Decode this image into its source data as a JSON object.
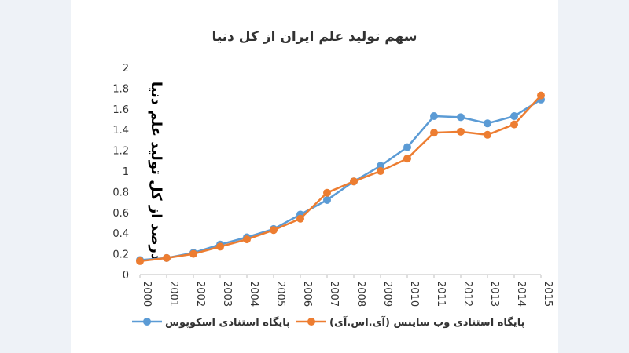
{
  "chart_data": {
    "type": "line",
    "title": "سهم تولید علم ایران از کل دنیا",
    "xlabel": "",
    "ylabel": "درصد از کل تولید علم دنیا",
    "x": [
      "2000",
      "2001",
      "2002",
      "2003",
      "2004",
      "2005",
      "2006",
      "2007",
      "2008",
      "2009",
      "2010",
      "2011",
      "2012",
      "2013",
      "2014",
      "2015"
    ],
    "ylim": [
      0,
      2
    ],
    "yticks": [
      "0",
      "0.2",
      "0.4",
      "0.6",
      "0.8",
      "1",
      "1.2",
      "1.4",
      "1.6",
      "1.8",
      "2"
    ],
    "grid": false,
    "legend_position": "bottom",
    "series": [
      {
        "name": "پایگاه استنادی اسکوپوس",
        "color": "#5b9bd5",
        "values": [
          0.14,
          0.16,
          0.21,
          0.29,
          0.36,
          0.44,
          0.58,
          0.72,
          0.9,
          1.05,
          1.23,
          1.53,
          1.52,
          1.46,
          1.53,
          1.69
        ]
      },
      {
        "name": "پایگاه استنادی وب ساینس (آی.اس.آی)",
        "color": "#ed7d31",
        "values": [
          0.13,
          0.16,
          0.2,
          0.27,
          0.34,
          0.43,
          0.54,
          0.79,
          0.9,
          1.0,
          1.12,
          1.37,
          1.38,
          1.35,
          1.45,
          1.73
        ]
      }
    ]
  }
}
